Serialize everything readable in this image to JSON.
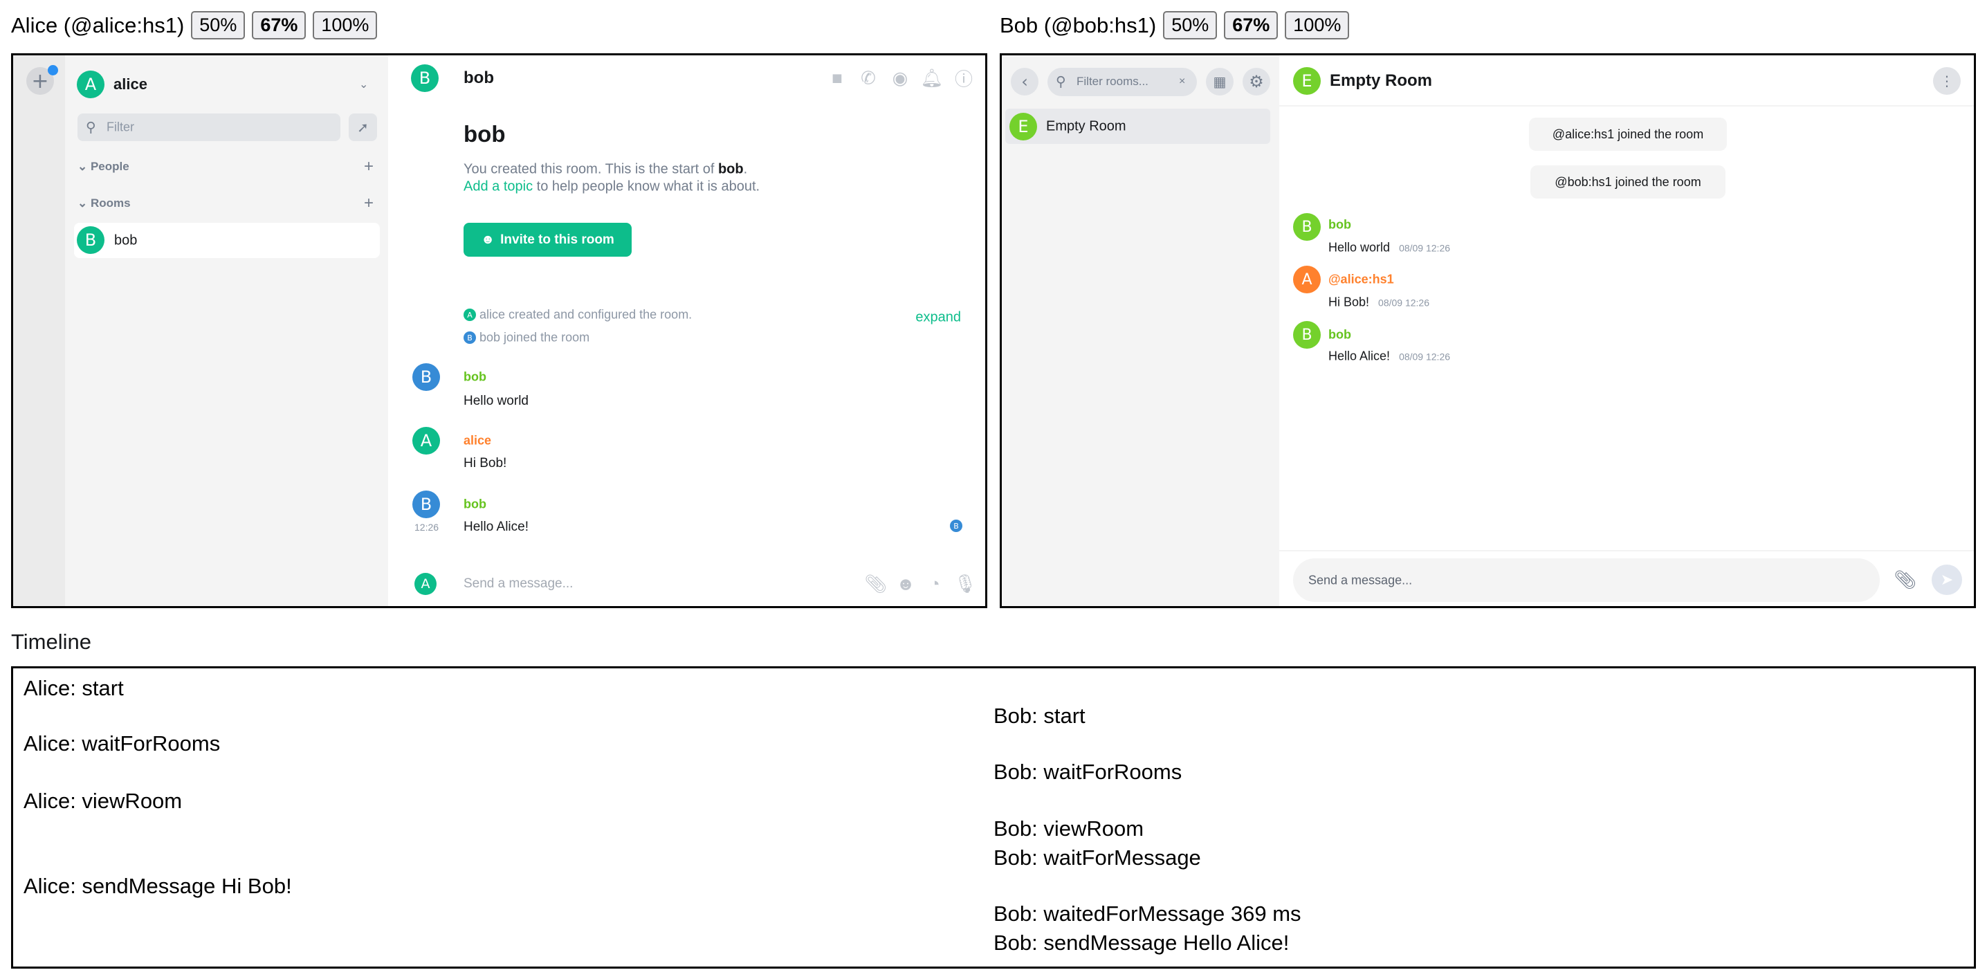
{
  "alice": {
    "label": "Alice (@alice:hs1)",
    "zoom": [
      "50%",
      "67%",
      "100%"
    ],
    "zoom_active": "67%",
    "user": {
      "name": "alice",
      "initial": "A"
    },
    "filter_placeholder": "Filter",
    "sections": {
      "people": "People",
      "rooms": "Rooms"
    },
    "rooms": [
      {
        "name": "bob",
        "initial": "B"
      }
    ],
    "room": {
      "name": "bob",
      "initial": "B",
      "intro_prefix": "You created this room. This is the start of ",
      "intro_name": "bob",
      "intro_suffix": ".",
      "add_topic": "Add a topic",
      "topic_suffix": " to help people know what it is about.",
      "invite": "Invite to this room"
    },
    "summary": [
      {
        "initial": "A",
        "text": "alice created and configured the room."
      },
      {
        "initial": "B",
        "text": "bob joined the room"
      }
    ],
    "expand": "expand",
    "messages": [
      {
        "sender": "bob",
        "initial": "B",
        "body": "Hello world"
      },
      {
        "sender": "alice",
        "initial": "A",
        "body": "Hi Bob!"
      },
      {
        "sender": "bob",
        "initial": "B",
        "body": "Hello Alice!",
        "time": "12:26",
        "receipt": "B"
      }
    ],
    "composer_placeholder": "Send a message...",
    "colors": {
      "green": "#0dbd8b",
      "blue": "#368bd6",
      "orange": "#ff812d",
      "lime": "#65c31e"
    }
  },
  "bob": {
    "label": "Bob (@bob:hs1)",
    "zoom": [
      "50%",
      "67%",
      "100%"
    ],
    "zoom_active": "67%",
    "filter_placeholder": "Filter rooms...",
    "rooms": [
      {
        "name": "Empty Room",
        "initial": "E"
      }
    ],
    "room": {
      "name": "Empty Room",
      "initial": "E"
    },
    "events": [
      "@alice:hs1 joined the room",
      "@bob:hs1 joined the room"
    ],
    "messages": [
      {
        "sender": "bob",
        "initial": "B",
        "body": "Hello world",
        "time": "08/09 12:26"
      },
      {
        "sender": "@alice:hs1",
        "initial": "A",
        "body": "Hi Bob!",
        "time": "08/09 12:26"
      },
      {
        "sender": "bob",
        "initial": "B",
        "body": "Hello Alice!",
        "time": "08/09 12:26"
      }
    ],
    "composer_placeholder": "Send a message..."
  },
  "timeline": {
    "label": "Timeline",
    "alice": [
      "Alice: start",
      "Alice: waitForRooms",
      "Alice: viewRoom",
      "Alice: sendMessage Hi Bob!"
    ],
    "bob": [
      "Bob: start",
      "Bob: waitForRooms",
      "Bob: viewRoom",
      "Bob: waitForMessage",
      "Bob: waitedForMessage 369 ms",
      "Bob: sendMessage Hello Alice!"
    ]
  }
}
